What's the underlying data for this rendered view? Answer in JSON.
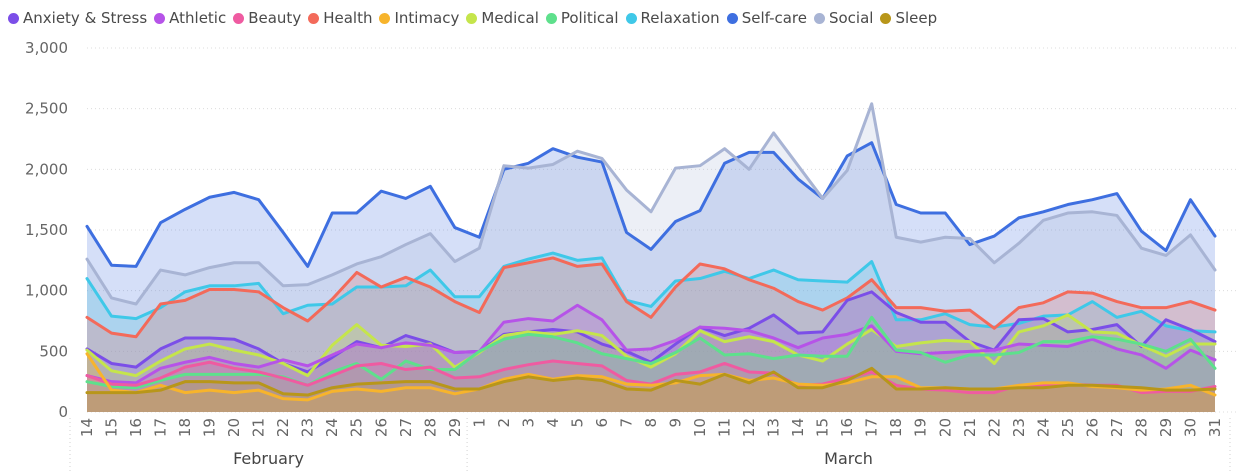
{
  "chart_data": {
    "type": "area",
    "y_axis": {
      "ticks": [
        "0",
        "500",
        "1,000",
        "1,500",
        "2,000",
        "2,500",
        "3,000"
      ],
      "ylim": [
        0,
        3000
      ]
    },
    "months": [
      {
        "label": "February"
      },
      {
        "label": "March"
      }
    ],
    "categories": [
      "14",
      "15",
      "16",
      "17",
      "18",
      "19",
      "20",
      "21",
      "22",
      "23",
      "24",
      "25",
      "26",
      "27",
      "28",
      "29",
      "1",
      "2",
      "3",
      "4",
      "5",
      "6",
      "7",
      "8",
      "9",
      "10",
      "11",
      "12",
      "13",
      "14",
      "15",
      "16",
      "17",
      "18",
      "19",
      "20",
      "21",
      "22",
      "23",
      "24",
      "25",
      "26",
      "27",
      "28",
      "29",
      "30",
      "31"
    ],
    "series": [
      {
        "name": "Anxiety & Stress",
        "color": "#7b4ee8",
        "values": [
          520,
          400,
          370,
          520,
          610,
          610,
          600,
          520,
          400,
          330,
          450,
          580,
          530,
          630,
          570,
          490,
          500,
          640,
          660,
          680,
          660,
          560,
          500,
          410,
          560,
          700,
          630,
          690,
          800,
          650,
          660,
          920,
          990,
          820,
          740,
          740,
          580,
          510,
          760,
          770,
          660,
          680,
          720,
          540,
          760,
          680,
          580
        ]
      },
      {
        "name": "Athletic",
        "color": "#b653e8",
        "values": [
          300,
          250,
          240,
          360,
          410,
          450,
          400,
          370,
          430,
          380,
          470,
          560,
          530,
          570,
          550,
          490,
          500,
          740,
          770,
          750,
          880,
          760,
          510,
          520,
          590,
          700,
          690,
          670,
          610,
          530,
          610,
          640,
          710,
          500,
          480,
          490,
          500,
          510,
          560,
          550,
          540,
          600,
          520,
          470,
          360,
          510,
          430
        ]
      },
      {
        "name": "Beauty",
        "color": "#ef5ba1",
        "values": [
          300,
          230,
          220,
          280,
          370,
          410,
          360,
          330,
          280,
          220,
          300,
          380,
          400,
          350,
          370,
          280,
          290,
          350,
          390,
          420,
          400,
          380,
          260,
          230,
          310,
          330,
          400,
          330,
          320,
          220,
          230,
          280,
          330,
          220,
          190,
          180,
          160,
          160,
          220,
          220,
          230,
          220,
          220,
          160,
          170,
          170,
          210
        ]
      },
      {
        "name": "Health",
        "color": "#f36a5a",
        "values": [
          780,
          650,
          620,
          890,
          920,
          1010,
          1010,
          990,
          860,
          750,
          930,
          1150,
          1030,
          1110,
          1030,
          910,
          820,
          1190,
          1230,
          1270,
          1200,
          1220,
          910,
          780,
          1030,
          1220,
          1180,
          1090,
          1020,
          910,
          840,
          940,
          1090,
          860,
          860,
          830,
          840,
          690,
          860,
          900,
          990,
          980,
          910,
          860,
          860,
          910,
          840
        ]
      },
      {
        "name": "Intimacy",
        "color": "#f7b42c",
        "values": [
          480,
          180,
          160,
          220,
          160,
          180,
          160,
          180,
          110,
          100,
          170,
          190,
          170,
          200,
          200,
          150,
          190,
          270,
          310,
          270,
          300,
          290,
          230,
          220,
          240,
          300,
          310,
          260,
          280,
          230,
          220,
          240,
          290,
          290,
          200,
          200,
          190,
          190,
          220,
          240,
          240,
          210,
          200,
          180,
          190,
          220,
          140
        ]
      },
      {
        "name": "Medical",
        "color": "#c5e54b",
        "values": [
          510,
          340,
          300,
          420,
          520,
          560,
          510,
          470,
          400,
          300,
          550,
          720,
          550,
          540,
          560,
          370,
          490,
          630,
          660,
          640,
          670,
          630,
          460,
          370,
          480,
          670,
          580,
          620,
          580,
          470,
          420,
          560,
          680,
          540,
          570,
          590,
          580,
          400,
          660,
          710,
          800,
          660,
          650,
          550,
          460,
          560,
          560
        ]
      },
      {
        "name": "Political",
        "color": "#5ee08c",
        "values": [
          250,
          210,
          200,
          260,
          310,
          310,
          310,
          310,
          290,
          220,
          330,
          400,
          270,
          420,
          350,
          350,
          500,
          600,
          640,
          620,
          570,
          480,
          440,
          400,
          490,
          610,
          470,
          480,
          440,
          470,
          460,
          460,
          780,
          510,
          490,
          410,
          470,
          470,
          490,
          580,
          580,
          620,
          600,
          560,
          500,
          600,
          360
        ]
      },
      {
        "name": "Relaxation",
        "color": "#3fc8e8",
        "values": [
          1100,
          790,
          770,
          860,
          990,
          1040,
          1040,
          1060,
          810,
          880,
          890,
          1030,
          1030,
          1040,
          1170,
          950,
          950,
          1200,
          1260,
          1310,
          1250,
          1270,
          920,
          870,
          1080,
          1100,
          1160,
          1100,
          1170,
          1090,
          1080,
          1070,
          1240,
          760,
          760,
          810,
          720,
          700,
          730,
          790,
          800,
          910,
          780,
          830,
          710,
          670,
          660
        ]
      },
      {
        "name": "Self-care",
        "color": "#3e6fe0",
        "values": [
          1530,
          1210,
          1200,
          1560,
          1670,
          1770,
          1810,
          1750,
          1480,
          1200,
          1640,
          1640,
          1820,
          1760,
          1860,
          1520,
          1440,
          2000,
          2050,
          2170,
          2100,
          2060,
          1480,
          1340,
          1570,
          1660,
          2050,
          2140,
          2140,
          1920,
          1760,
          2110,
          2220,
          1710,
          1640,
          1640,
          1380,
          1450,
          1600,
          1650,
          1710,
          1750,
          1800,
          1490,
          1330,
          1750,
          1450
        ]
      },
      {
        "name": "Social",
        "color": "#a8b4d4",
        "values": [
          1260,
          940,
          890,
          1170,
          1130,
          1190,
          1230,
          1230,
          1040,
          1050,
          1130,
          1220,
          1280,
          1380,
          1470,
          1240,
          1350,
          2030,
          2010,
          2040,
          2150,
          2090,
          1830,
          1650,
          2010,
          2030,
          2170,
          2000,
          2300,
          2030,
          1760,
          1990,
          2540,
          1440,
          1400,
          1440,
          1430,
          1230,
          1390,
          1580,
          1640,
          1650,
          1620,
          1350,
          1290,
          1460,
          1170
        ]
      },
      {
        "name": "Sleep",
        "color": "#b8961a",
        "values": [
          160,
          160,
          160,
          180,
          250,
          250,
          240,
          240,
          150,
          140,
          200,
          230,
          240,
          250,
          250,
          190,
          190,
          250,
          290,
          260,
          280,
          260,
          190,
          180,
          260,
          230,
          310,
          240,
          330,
          200,
          200,
          260,
          360,
          190,
          190,
          200,
          190,
          190,
          200,
          200,
          220,
          220,
          210,
          200,
          180,
          180,
          190
        ]
      }
    ]
  }
}
